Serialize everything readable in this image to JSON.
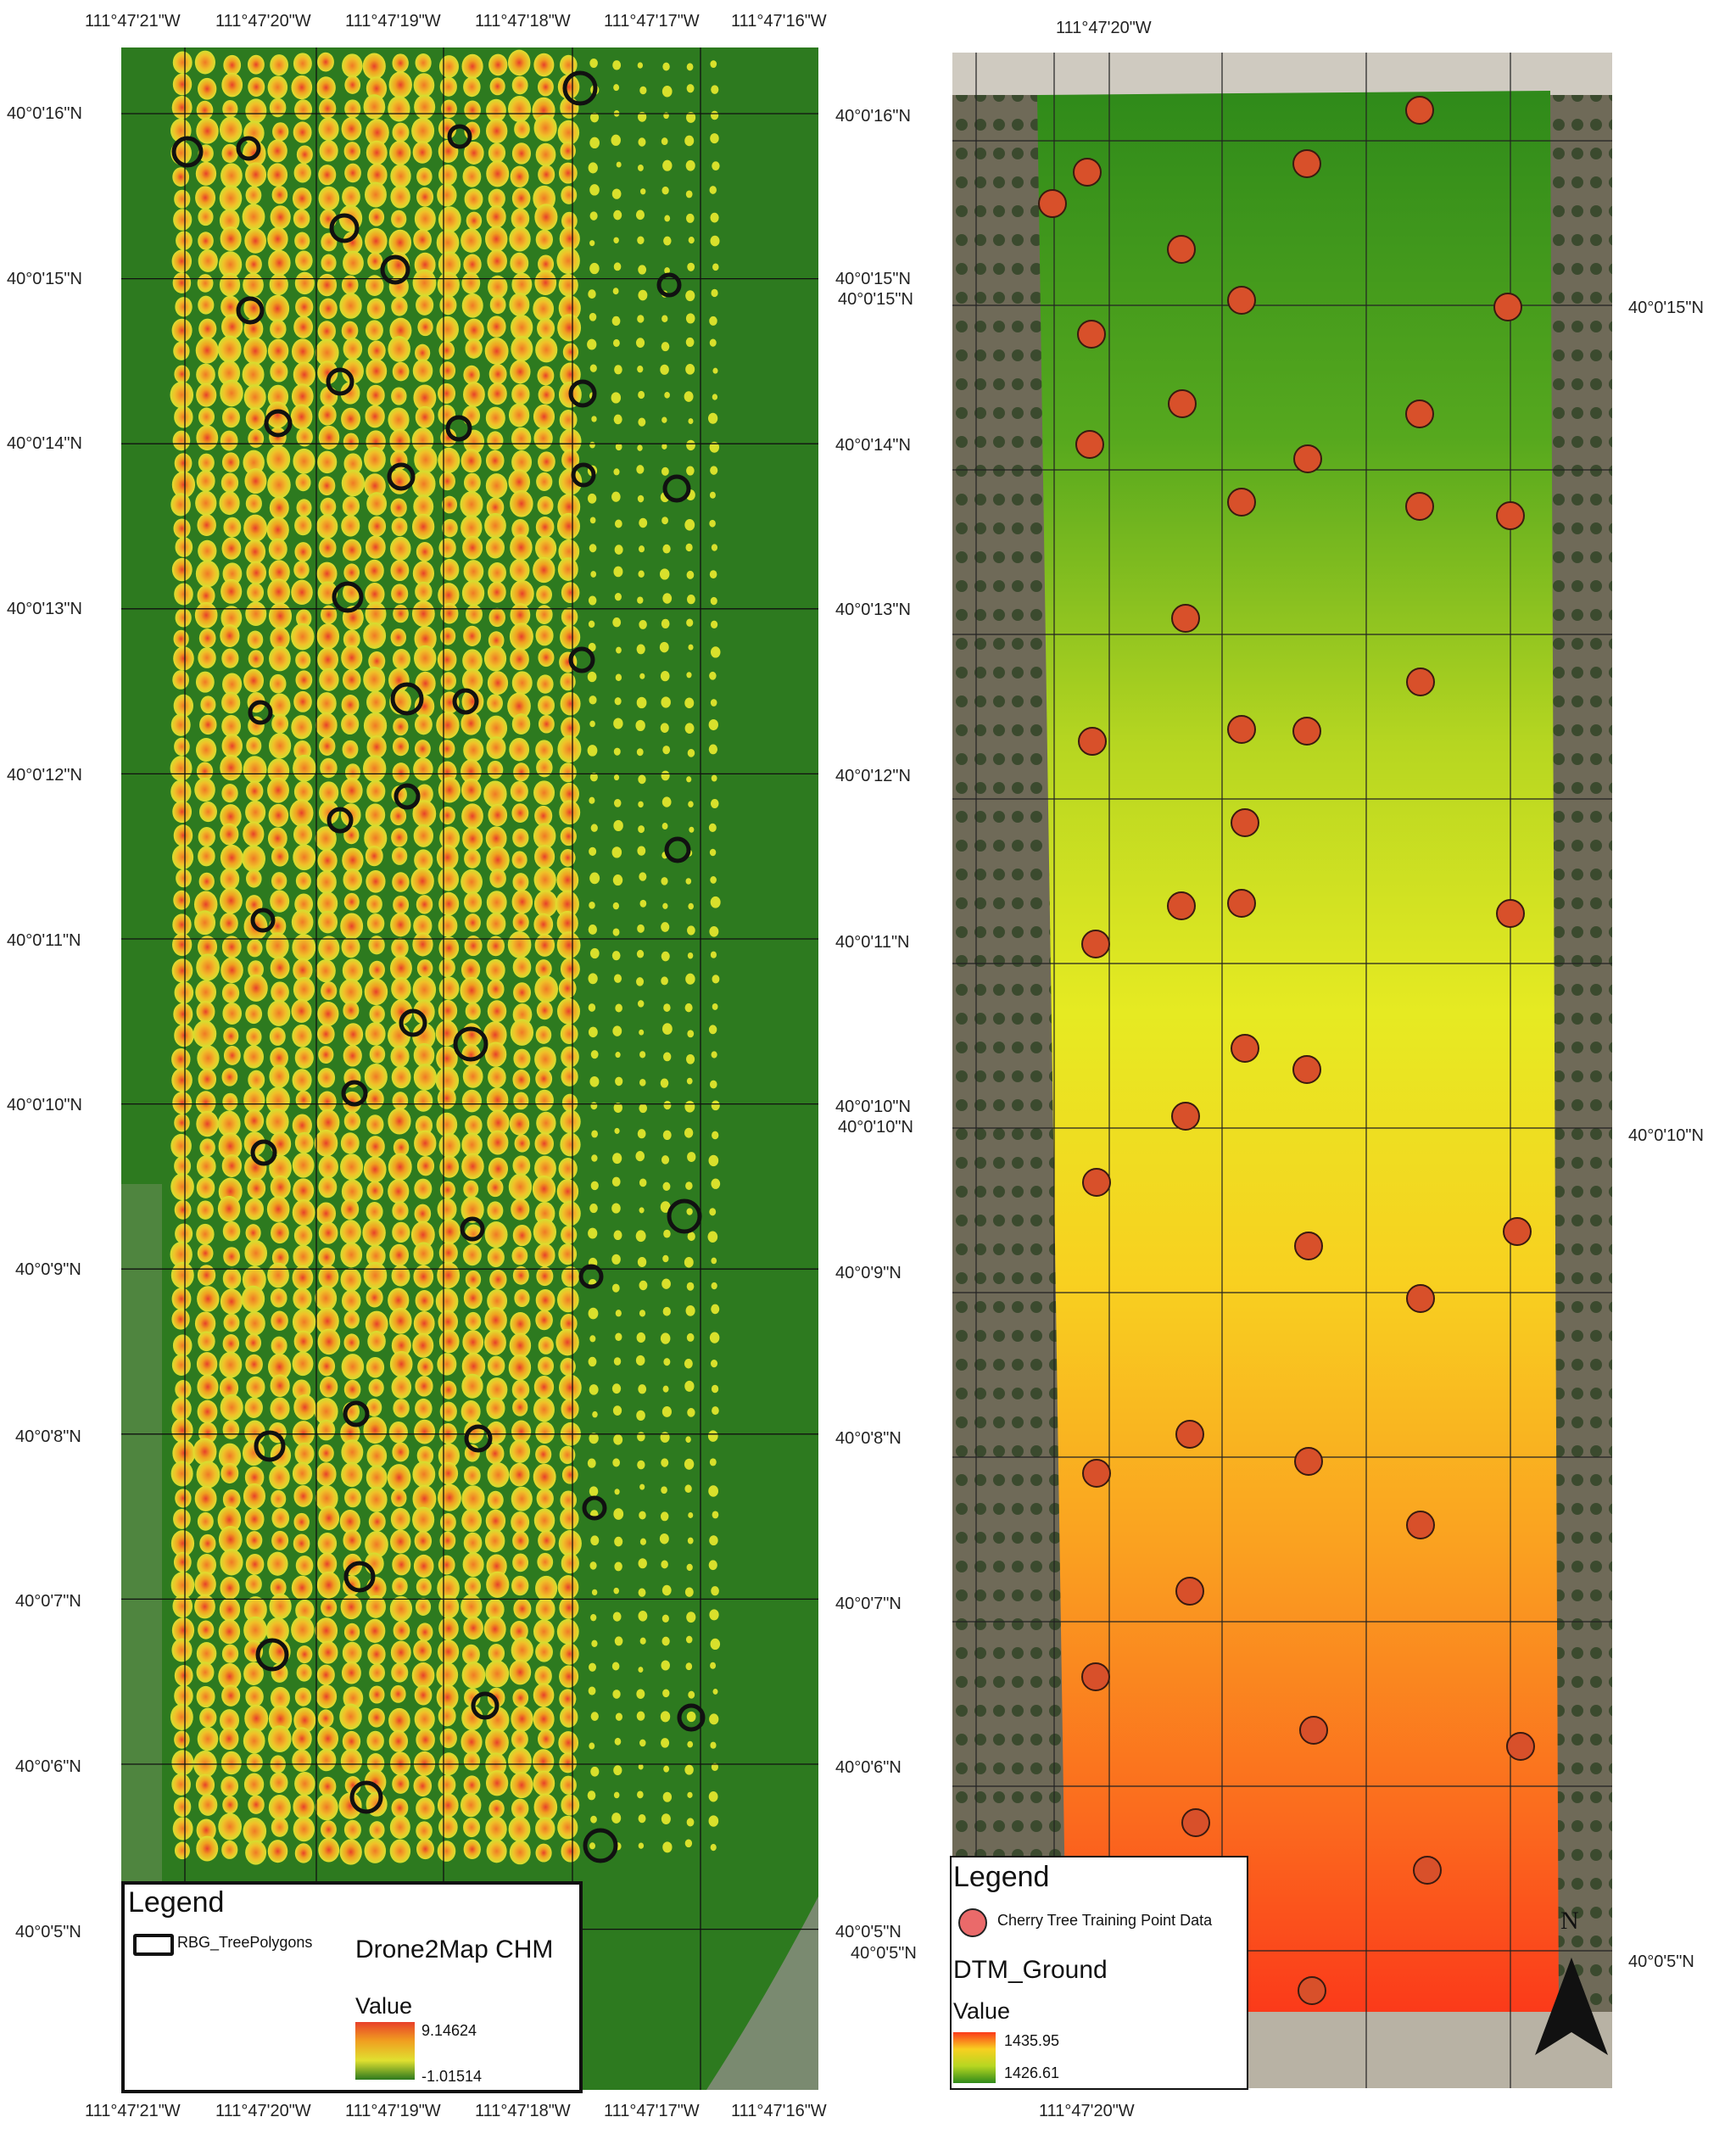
{
  "left_map": {
    "top_lon_labels": [
      "111°47'21\"W",
      "111°47'20\"W",
      "111°47'19\"W",
      "111°47'18\"W",
      "111°47'17\"W",
      "111°47'16\"W"
    ],
    "bottom_lon_labels": [
      "111°47'21\"W",
      "111°47'20\"W",
      "111°47'19\"W",
      "111°47'18\"W",
      "111°47'17\"W",
      "111°47'16\"W"
    ],
    "left_lat_labels": [
      "40°0'16\"N",
      "40°0'15\"N",
      "40°0'14\"N",
      "40°0'13\"N",
      "40°0'12\"N",
      "40°0'11\"N",
      "40°0'10\"N",
      "40°0'9\"N",
      "40°0'8\"N",
      "40°0'7\"N",
      "40°0'6\"N",
      "40°0'5\"N"
    ],
    "right_lat_labels": [
      "40°0'16\"N",
      "40°0'15\"N",
      "40°0'14\"N",
      "40°0'13\"N",
      "40°0'12\"N",
      "40°0'11\"N",
      "40°0'10\"N",
      "40°0'9\"N",
      "40°0'8\"N",
      "40°0'7\"N",
      "40°0'6\"N",
      "40°0'5\"N"
    ],
    "legend": {
      "title": "Legend",
      "polygon_label": "RBG_TreePolygons",
      "layer_label": "Drone2Map CHM",
      "value_label": "Value",
      "max_value": "9.14624",
      "min_value": "-1.01514"
    },
    "colors": {
      "background": "#2d7a1f",
      "high": "#e8402a",
      "mid": "#f0a020",
      "low": "#e8e030"
    }
  },
  "right_map": {
    "top_lon_label": "111°47'20\"W",
    "bottom_lon_label": "111°47'20\"W",
    "left_lat_labels": [
      "40°0'15\"N",
      "40°0'10\"N",
      "40°0'5\"N"
    ],
    "right_lat_labels": [
      "40°0'15\"N",
      "40°0'10\"N",
      "40°0'5\"N"
    ],
    "north_label": "N",
    "legend": {
      "title": "Legend",
      "point_label": "Cherry Tree Training Point Data",
      "layer_label": "DTM_Ground",
      "value_label": "Value",
      "max_value": "1435.95",
      "min_value": "1426.61"
    },
    "colors": {
      "top": "#2f8a1a",
      "middle": "#e6ea22",
      "bottom": "#fb3a1a",
      "point_fill": "#d8502a"
    }
  }
}
